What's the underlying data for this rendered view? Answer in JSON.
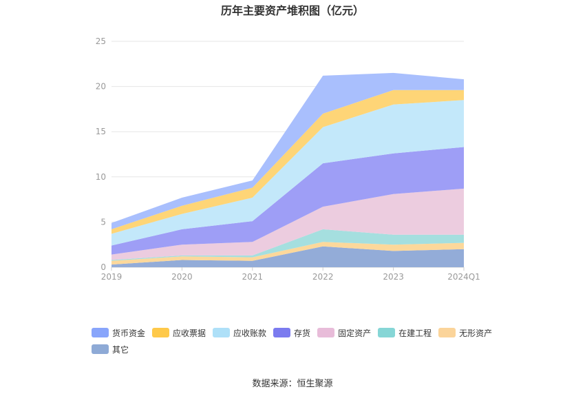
{
  "chart_data": {
    "type": "area",
    "stacked": true,
    "title": "历年主要资产堆积图（亿元）",
    "categories": [
      "2019",
      "2020",
      "2021",
      "2022",
      "2023",
      "2024Q1"
    ],
    "ylim": [
      0,
      25
    ],
    "yticks": [
      0,
      5,
      10,
      15,
      20,
      25
    ],
    "grid": true,
    "legend_position": "bottom",
    "series": [
      {
        "name": "其它",
        "color": "#93acd8",
        "values": [
          0.3,
          0.8,
          0.7,
          2.3,
          1.8,
          2.0
        ]
      },
      {
        "name": "无形资产",
        "color": "#fcd89b",
        "values": [
          0.4,
          0.4,
          0.4,
          0.5,
          0.7,
          0.7
        ]
      },
      {
        "name": "在建工程",
        "color": "#a5dfdf",
        "values": [
          0.1,
          0.1,
          0.2,
          1.4,
          1.1,
          0.9
        ]
      },
      {
        "name": "固定资产",
        "color": "#ecccdf",
        "values": [
          0.6,
          1.2,
          1.5,
          2.5,
          4.5,
          5.1
        ]
      },
      {
        "name": "存货",
        "color": "#9e9ef6",
        "values": [
          1.0,
          1.7,
          2.3,
          4.8,
          4.5,
          4.6
        ]
      },
      {
        "name": "应收账款",
        "color": "#c3e8fa",
        "values": [
          1.3,
          1.7,
          2.6,
          4.0,
          5.4,
          5.2
        ]
      },
      {
        "name": "应收票据",
        "color": "#fed577",
        "values": [
          0.5,
          0.9,
          1.1,
          1.5,
          1.6,
          1.1
        ]
      },
      {
        "name": "货币资金",
        "color": "#a9bffd",
        "values": [
          0.7,
          0.9,
          0.8,
          4.2,
          1.9,
          1.2
        ]
      }
    ],
    "legend": [
      {
        "name": "货币资金",
        "color": "#88a5fb"
      },
      {
        "name": "应收票据",
        "color": "#fec94a"
      },
      {
        "name": "应收账款",
        "color": "#aee0f8"
      },
      {
        "name": "存货",
        "color": "#7b7bef"
      },
      {
        "name": "固定资产",
        "color": "#e8bcd9"
      },
      {
        "name": "在建工程",
        "color": "#86d6d6"
      },
      {
        "name": "无形资产",
        "color": "#fbd49a"
      },
      {
        "name": "其它",
        "color": "#8eaad6"
      }
    ]
  },
  "source_note": "数据来源：恒生聚源"
}
